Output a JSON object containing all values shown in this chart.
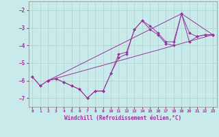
{
  "xlabel": "Windchill (Refroidissement éolien,°C)",
  "bg_color": "#c8eaea",
  "grid_color": "#b0d0d0",
  "line_color": "#993399",
  "xlim": [
    -0.5,
    23.5
  ],
  "ylim": [
    -7.5,
    -1.5
  ],
  "yticks": [
    -7,
    -6,
    -5,
    -4,
    -3,
    -2
  ],
  "xticks": [
    0,
    1,
    2,
    3,
    4,
    5,
    6,
    7,
    8,
    9,
    10,
    11,
    12,
    13,
    14,
    15,
    16,
    17,
    18,
    19,
    20,
    21,
    22,
    23
  ],
  "series": [
    {
      "x": [
        0,
        1,
        2,
        3,
        4,
        5,
        6,
        7,
        8,
        9,
        10,
        11,
        12,
        13,
        14,
        15,
        16,
        17,
        18,
        19,
        20,
        21,
        22,
        23
      ],
      "y": [
        -5.8,
        -6.3,
        -6.0,
        -5.9,
        -6.1,
        -6.3,
        -6.5,
        -7.0,
        -6.6,
        -6.6,
        -5.6,
        -4.5,
        -4.4,
        -3.1,
        -2.6,
        -2.9,
        -3.3,
        -3.8,
        -3.8,
        -2.2,
        -3.3,
        -3.5,
        -3.4,
        -3.4
      ]
    },
    {
      "x": [
        0,
        1,
        2,
        3,
        4,
        5,
        6,
        7,
        8,
        9,
        10,
        11,
        12,
        13,
        14,
        15,
        16,
        17,
        18,
        19,
        20,
        21,
        22,
        23
      ],
      "y": [
        -5.8,
        -6.3,
        -6.0,
        -5.9,
        -6.1,
        -6.3,
        -6.5,
        -7.0,
        -6.6,
        -6.6,
        -5.6,
        -4.7,
        -4.5,
        -3.1,
        -2.6,
        -3.1,
        -3.4,
        -3.9,
        -4.0,
        -2.2,
        -3.8,
        -3.5,
        -3.4,
        -3.4
      ]
    },
    {
      "x": [
        2,
        23
      ],
      "y": [
        -6.0,
        -3.4
      ]
    },
    {
      "x": [
        2,
        19,
        23
      ],
      "y": [
        -6.0,
        -2.2,
        -3.4
      ]
    }
  ]
}
